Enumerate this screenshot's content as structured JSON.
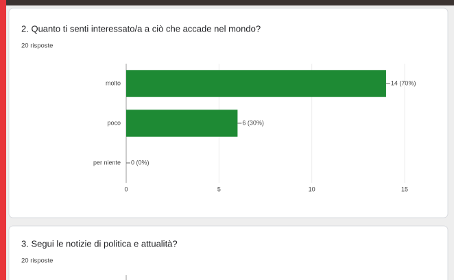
{
  "chart_data": {
    "type": "bar",
    "horizontal": true,
    "title": "2. Quanto ti senti interessato/a a ciò che accade nel mondo?",
    "subtitle": "20 risposte",
    "categories": [
      "molto",
      "poco",
      "per niente"
    ],
    "values": [
      14,
      6,
      0
    ],
    "value_labels": [
      "14 (70%)",
      "6 (30%)",
      "0 (0%)"
    ],
    "color": "#1e8a34",
    "xlim": [
      0,
      15
    ],
    "xticks": [
      0,
      5,
      10,
      15
    ],
    "grid": true
  },
  "next_question": {
    "title": "3. Segui le notizie di politica e attualità?",
    "subtitle": "20 risposte"
  }
}
